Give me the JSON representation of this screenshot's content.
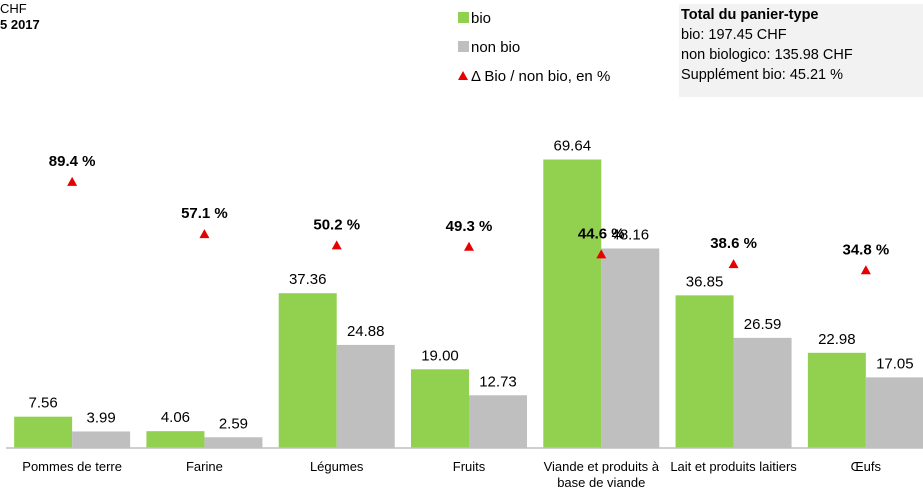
{
  "chart_data": {
    "type": "bar",
    "title_fragments": [
      "CHF",
      "5 2017"
    ],
    "categories": [
      "Pommes de terre",
      "Farine",
      "Légumes",
      "Fruits",
      "Viande et produits à base de viande",
      "Lait et produits laitiers",
      "Œufs"
    ],
    "series": [
      {
        "name": "bio",
        "color": "#92d050",
        "values": [
          7.56,
          4.06,
          37.36,
          19.0,
          69.64,
          36.85,
          22.98
        ],
        "value_labels": [
          "7.56",
          "4.06",
          "37.36",
          "19.00",
          "69.64",
          "36.85",
          "22.98"
        ]
      },
      {
        "name": "non bio",
        "color": "#bfbfbf",
        "values": [
          3.99,
          2.59,
          24.88,
          12.73,
          48.16,
          26.59,
          17.05
        ]
      },
      {
        "name": "Δ Bio / non bio, en %",
        "color": "#e60000",
        "axis": "y2",
        "values": [
          89.4,
          57.1,
          50.2,
          49.3,
          44.6,
          38.6,
          34.8
        ],
        "value_labels": [
          "89.4 %",
          "57.1 %",
          "50.2 %",
          "49.3 %",
          "44.6 %",
          "38.6 %",
          "34.8 %"
        ]
      }
    ],
    "ylim": [
      0,
      84
    ],
    "y2lim": [
      -75,
      140
    ],
    "summary": {
      "title": "Total du panier-type",
      "lines": [
        "bio: 197.45 CHF",
        "non biologico: 135.98 CHF",
        "Supplément bio: 45.21 %"
      ]
    }
  }
}
